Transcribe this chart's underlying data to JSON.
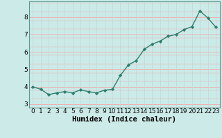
{
  "x": [
    0,
    1,
    2,
    3,
    4,
    5,
    6,
    7,
    8,
    9,
    10,
    11,
    12,
    13,
    14,
    15,
    16,
    17,
    18,
    19,
    20,
    21,
    22,
    23
  ],
  "y": [
    4.0,
    3.85,
    3.55,
    3.65,
    3.72,
    3.65,
    3.82,
    3.72,
    3.65,
    3.8,
    3.85,
    4.65,
    5.25,
    5.5,
    6.15,
    6.45,
    6.62,
    6.9,
    7.0,
    7.28,
    7.45,
    8.35,
    7.95,
    7.42
  ],
  "line_color": "#2e7d6e",
  "marker": "D",
  "markersize": 2.2,
  "linewidth": 1.0,
  "xlabel": "Humidex (Indice chaleur)",
  "xlim": [
    -0.5,
    23.5
  ],
  "ylim": [
    2.8,
    8.9
  ],
  "yticks": [
    3,
    4,
    5,
    6,
    7,
    8
  ],
  "xticks": [
    0,
    1,
    2,
    3,
    4,
    5,
    6,
    7,
    8,
    9,
    10,
    11,
    12,
    13,
    14,
    15,
    16,
    17,
    18,
    19,
    20,
    21,
    22,
    23
  ],
  "bg_color": "#cceae7",
  "hgrid_color": "#f0b0b0",
  "vgrid_color": "#b8dbd8",
  "spine_color": "#5a9a95",
  "tick_label_fontsize": 6.5,
  "xlabel_fontsize": 7.5
}
